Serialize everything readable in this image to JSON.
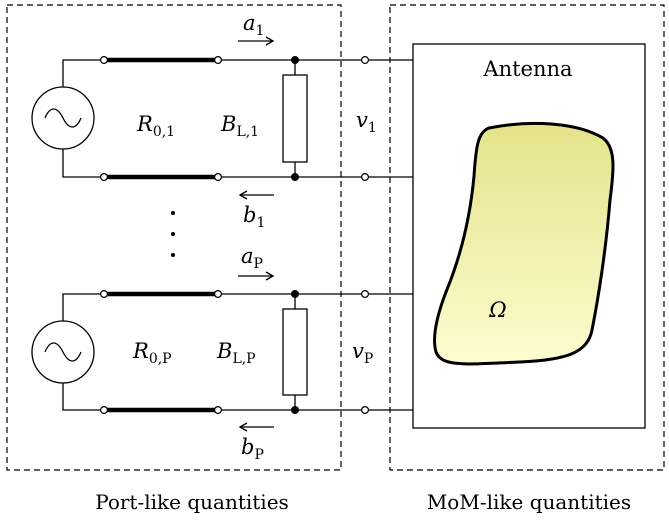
{
  "labels": {
    "antenna": "Antenna",
    "omega": "Ω",
    "port_quantities": "Port-like quantities",
    "mom_quantities": "MoM-like quantities",
    "vdots": "⋮"
  },
  "port1": {
    "a": "a",
    "a_sub": "1",
    "b": "b",
    "b_sub": "1",
    "R": "R",
    "R_sub": "0,1",
    "B": "B",
    "B_sub": "L,1",
    "v": "v",
    "v_sub": "1"
  },
  "portP": {
    "a": "a",
    "a_sub": "P",
    "b": "b",
    "b_sub": "P",
    "R": "R",
    "R_sub": "0,P",
    "B": "B",
    "B_sub": "L,P",
    "v": "v",
    "v_sub": "P"
  },
  "colors": {
    "shape_fill_top": "#e4e38a",
    "shape_fill_bottom": "#fdfcd0",
    "stroke": "#000000"
  }
}
